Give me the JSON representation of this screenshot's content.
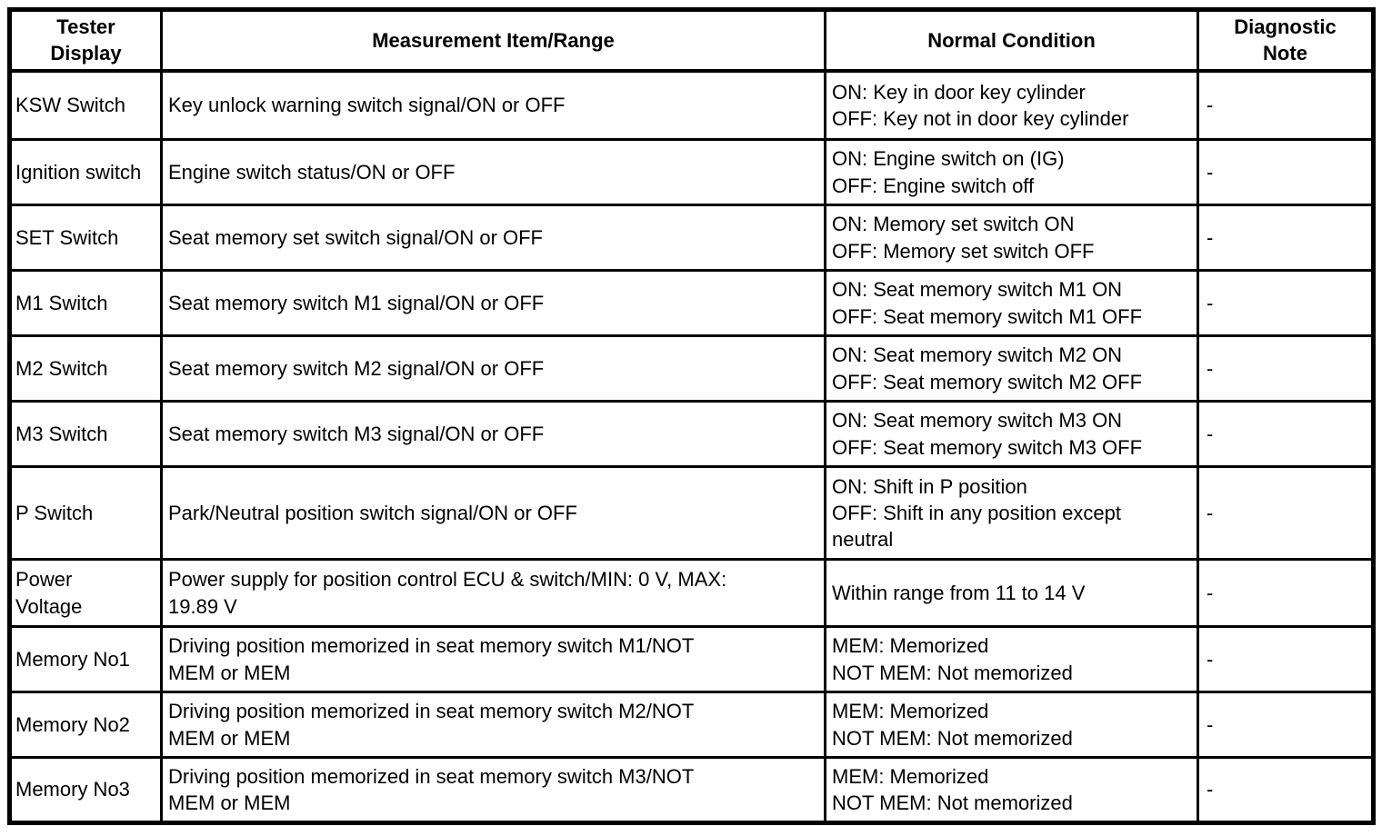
{
  "colors": {
    "border": "#000000",
    "background": "#ffffff",
    "text": "#000000"
  },
  "table": {
    "headers": {
      "tester_display": "Tester\nDisplay",
      "measurement": "Measurement Item/Range",
      "normal_condition": "Normal Condition",
      "diagnostic_note": "Diagnostic\nNote"
    },
    "rows": [
      {
        "tester": "KSW Switch",
        "measurement": "Key unlock warning switch signal/ON or OFF",
        "normal": "ON: Key in door key cylinder\nOFF: Key not in door key cylinder",
        "note": "-"
      },
      {
        "tester": "Ignition switch",
        "measurement": "Engine switch status/ON or OFF",
        "normal": "ON: Engine switch on (IG)\nOFF: Engine switch off",
        "note": "-"
      },
      {
        "tester": "SET Switch",
        "measurement": "Seat memory set switch signal/ON or OFF",
        "normal": "ON: Memory set switch ON\nOFF: Memory set switch OFF",
        "note": "-"
      },
      {
        "tester": "M1 Switch",
        "measurement": "Seat memory switch M1 signal/ON or OFF",
        "normal": "ON: Seat memory switch M1 ON\nOFF: Seat memory switch M1 OFF",
        "note": "-"
      },
      {
        "tester": "M2 Switch",
        "measurement": "Seat memory switch M2 signal/ON or OFF",
        "normal": "ON: Seat memory switch M2 ON\nOFF: Seat memory switch M2 OFF",
        "note": "-"
      },
      {
        "tester": "M3 Switch",
        "measurement": "Seat memory switch M3 signal/ON or OFF",
        "normal": "ON: Seat memory switch M3 ON\nOFF: Seat memory switch M3 OFF",
        "note": "-"
      },
      {
        "tester": "P Switch",
        "measurement": "Park/Neutral position switch signal/ON or OFF",
        "normal": "ON: Shift in P position\nOFF: Shift in any position except\nneutral",
        "note": "-"
      },
      {
        "tester": "Power\nVoltage",
        "measurement": "Power supply for position control ECU & switch/MIN: 0 V, MAX:\n19.89 V",
        "normal": "Within range from 11 to 14 V",
        "note": "-"
      },
      {
        "tester": "Memory No1",
        "measurement": "Driving position memorized in seat memory switch M1/NOT\nMEM or MEM",
        "normal": "MEM: Memorized\nNOT MEM: Not memorized",
        "note": "-"
      },
      {
        "tester": "Memory No2",
        "measurement": "Driving position memorized in seat memory switch M2/NOT\nMEM or MEM",
        "normal": "MEM: Memorized\nNOT MEM: Not memorized",
        "note": "-"
      },
      {
        "tester": "Memory No3",
        "measurement": "Driving position memorized in seat memory switch M3/NOT\nMEM or MEM",
        "normal": "MEM: Memorized\nNOT MEM: Not memorized",
        "note": "-"
      }
    ]
  }
}
